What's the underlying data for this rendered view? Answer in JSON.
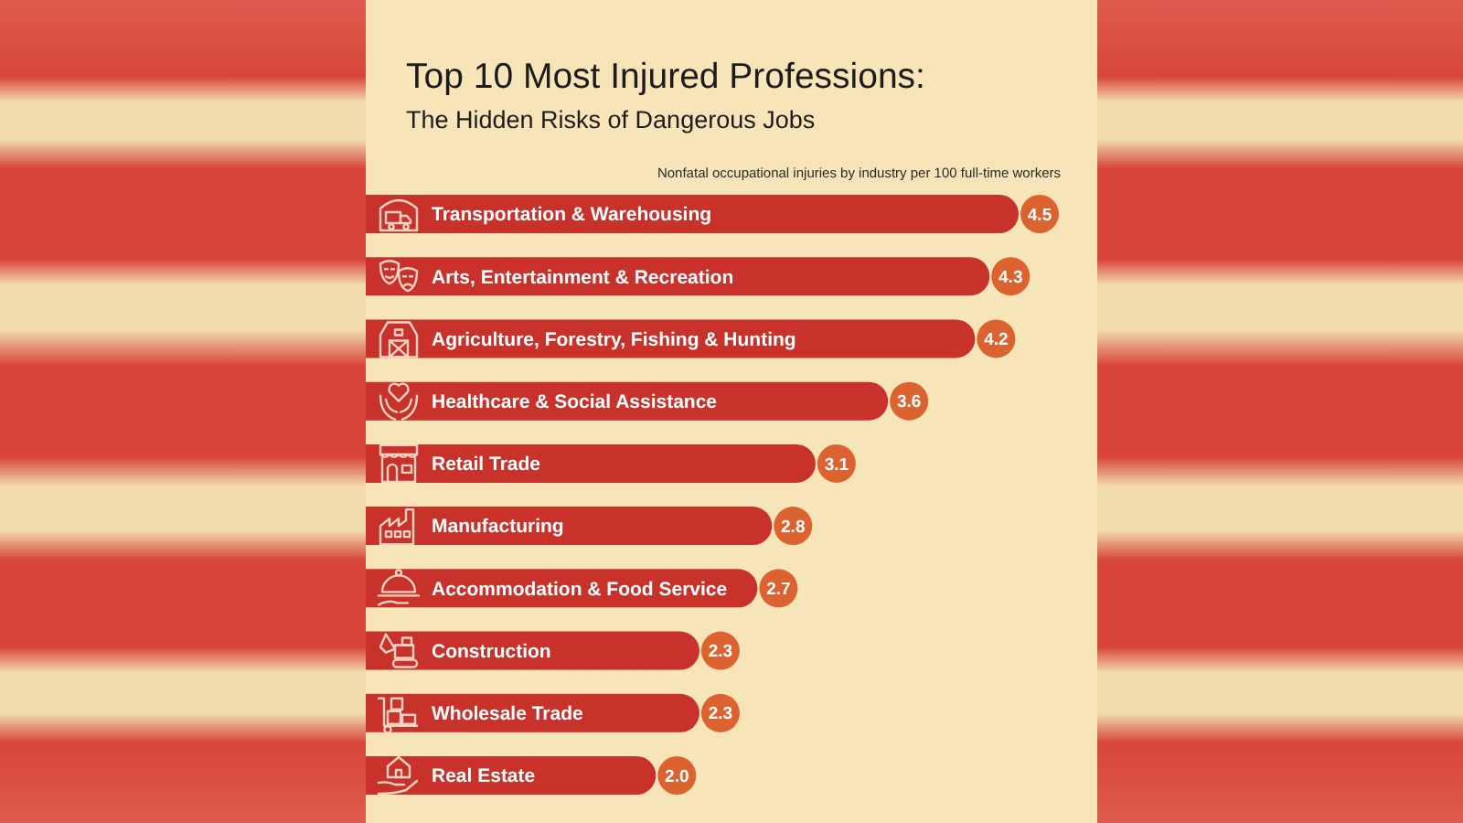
{
  "chart_data": {
    "type": "bar",
    "orientation": "horizontal",
    "title": "Top 10 Most Injured Professions:",
    "subtitle": "The Hidden Risks of Dangerous Jobs",
    "annotations": [
      "Nonfatal occupational injuries by industry per 100 full-time workers"
    ],
    "categories": [
      "Transportation & Warehousing",
      "Arts, Entertainment & Recreation",
      "Agriculture, Forestry, Fishing & Hunting",
      "Healthcare & Social Assistance",
      "Retail Trade",
      "Manufacturing",
      "Accommodation & Food Service",
      "Construction",
      "Wholesale Trade",
      "Real Estate"
    ],
    "values": [
      4.5,
      4.3,
      4.2,
      3.6,
      3.1,
      2.8,
      2.7,
      2.3,
      2.3,
      2.0
    ],
    "value_labels": [
      "4.5",
      "4.3",
      "4.2",
      "3.6",
      "3.1",
      "2.8",
      "2.7",
      "2.3",
      "2.3",
      "2.0"
    ],
    "color": "#c8322b"
  }
}
